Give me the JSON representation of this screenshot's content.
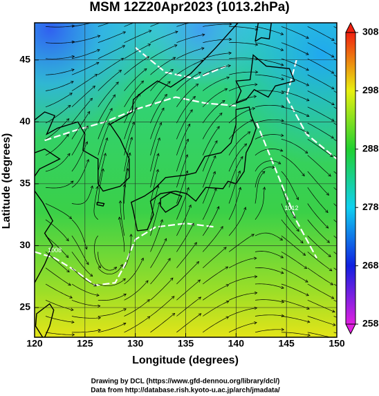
{
  "title": "MSM 12Z20Apr2023 (1013.2hPa)",
  "x_axis": {
    "label": "Longitude (degrees)",
    "lim": [
      120,
      150
    ],
    "ticks": [
      120,
      125,
      130,
      135,
      140,
      145,
      150
    ]
  },
  "y_axis": {
    "label": "Latitude  (degrees)",
    "lim": [
      22.6,
      48
    ],
    "ticks": [
      25,
      30,
      35,
      40,
      45
    ]
  },
  "colorbar": {
    "lim": [
      258,
      308
    ],
    "ticks": [
      258,
      268,
      278,
      288,
      298,
      308
    ]
  },
  "contour_labels": [
    "1008",
    "1012"
  ],
  "credits": [
    "Drawing by DCL (https://www.gfd-dennou.org/library/dcl/)",
    "Data from http://database.rish.kyoto-u.ac.jp/arch/jmadata/"
  ]
}
